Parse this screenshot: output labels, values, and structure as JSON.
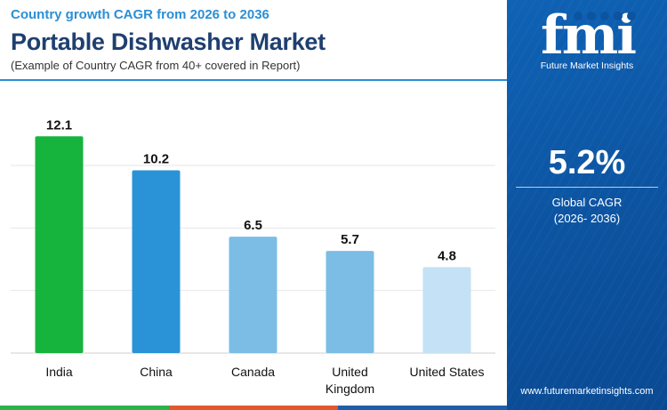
{
  "header": {
    "subtitle": "Country growth CAGR from 2026 to 2036",
    "title": "Portable Dishwasher Market",
    "caption": "(Example of Country CAGR from 40+ covered in Report)"
  },
  "sidebar": {
    "brand": "fmi",
    "brand_sub": "Future Market Insights",
    "global_value": "5.2%",
    "global_label_line1": "Global CAGR",
    "global_label_line2": "(2026- 2036)",
    "website": "www.futuremarketinsights.com"
  },
  "colors": {
    "bars": [
      "#17b43d",
      "#2a93d8",
      "#7cbde6",
      "#7cbde6",
      "#c4e1f5"
    ],
    "bottom_band": [
      "#2db34a",
      "#e0582f",
      "#1f5fa8"
    ],
    "sidebar": "#0c53a0"
  },
  "chart_data": {
    "type": "bar",
    "title": "Portable Dishwasher Market",
    "categories": [
      "India",
      "China",
      "Canada",
      "United Kingdom",
      "United States"
    ],
    "category_lines": [
      [
        "India"
      ],
      [
        "China"
      ],
      [
        "Canada"
      ],
      [
        "United",
        "Kingdom"
      ],
      [
        "United States"
      ]
    ],
    "values": [
      12.1,
      10.2,
      6.5,
      5.7,
      4.8
    ],
    "value_labels": [
      "12.1",
      "10.2",
      "6.5",
      "5.7",
      "4.8"
    ],
    "ylim": [
      0,
      14
    ],
    "grid": true,
    "legend": "none"
  }
}
